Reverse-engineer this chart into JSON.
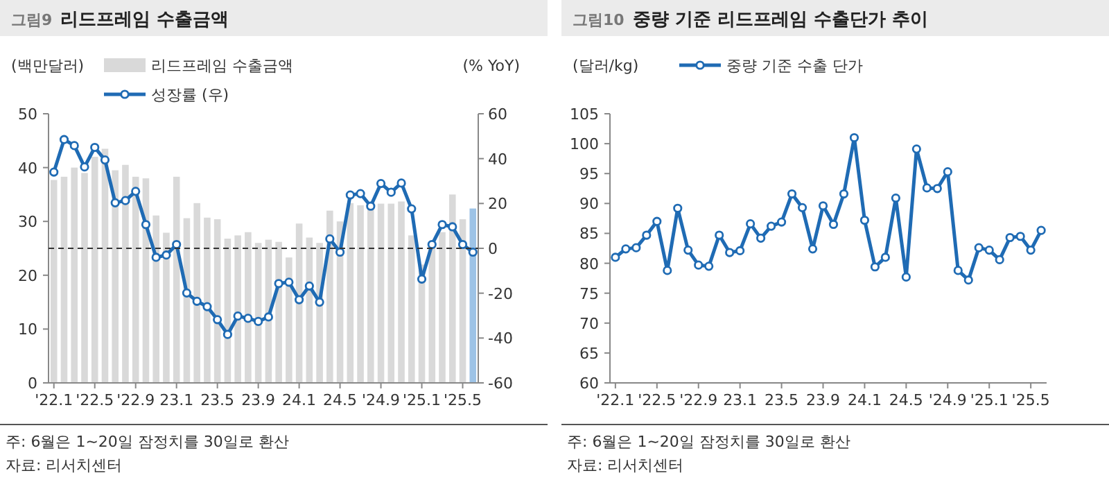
{
  "chart_data": [
    {
      "type": "bar",
      "title": "그림9 리드프레임 수출금액",
      "ylabel": "(백만달러)",
      "y2label": "(% YoY)",
      "categories": [
        "'22.1",
        null,
        null,
        null,
        "'22.5",
        null,
        null,
        null,
        "'22.9",
        null,
        null,
        null,
        "23.1",
        null,
        null,
        null,
        "23.5",
        null,
        null,
        null,
        "23.9",
        null,
        null,
        null,
        "24.1",
        null,
        null,
        null,
        "24.5",
        null,
        null,
        null,
        "'24.9",
        null,
        null,
        null,
        "'25.1",
        null,
        null,
        null,
        "'25.5",
        null
      ],
      "ylim": [
        0,
        50
      ],
      "yticks": [
        0,
        10,
        20,
        30,
        40,
        50
      ],
      "y2lim": [
        -60,
        60
      ],
      "y2ticks": [
        -60,
        -40,
        -20,
        0,
        20,
        40,
        60
      ],
      "series": [
        {
          "name": "리드프레임 수출금액",
          "color": "#d9d9d9",
          "colors": [
            "#d9d9d9",
            "#d9d9d9",
            "#d9d9d9",
            "#d9d9d9",
            "#d9d9d9",
            "#d9d9d9",
            "#d9d9d9",
            "#d9d9d9",
            "#d9d9d9",
            "#d9d9d9",
            "#d9d9d9",
            "#d9d9d9",
            "#d9d9d9",
            "#d9d9d9",
            "#d9d9d9",
            "#d9d9d9",
            "#d9d9d9",
            "#d9d9d9",
            "#d9d9d9",
            "#d9d9d9",
            "#d9d9d9",
            "#d9d9d9",
            "#d9d9d9",
            "#d9d9d9",
            "#d9d9d9",
            "#d9d9d9",
            "#d9d9d9",
            "#d9d9d9",
            "#d9d9d9",
            "#d9d9d9",
            "#d9d9d9",
            "#d9d9d9",
            "#d9d9d9",
            "#d9d9d9",
            "#d9d9d9",
            "#d9d9d9",
            "#d9d9d9",
            "#d9d9d9",
            "#d9d9d9",
            "#d9d9d9",
            "#d9d9d9",
            "#9dc3e6"
          ],
          "values": [
            37.7,
            38.3,
            40,
            39,
            42,
            43.5,
            39.5,
            40.5,
            38.3,
            38,
            31.1,
            27.9,
            38.3,
            30.6,
            33.4,
            30.7,
            30.4,
            26.8,
            27.4,
            28,
            26,
            26.6,
            26.2,
            23.3,
            29.6,
            27,
            26,
            32,
            30,
            33.4,
            33,
            32.6,
            33.3,
            33.3,
            33.7,
            27.4,
            22,
            25.7,
            28,
            35,
            30.4,
            32.4
          ]
        },
        {
          "name": "성장률 (우)",
          "type": "line",
          "axis": "y2",
          "color": "#1f6bb4",
          "values": [
            34,
            48.5,
            45.8,
            36.3,
            45,
            39.4,
            20.3,
            21.3,
            25.4,
            10.6,
            -4,
            -3,
            1.7,
            -19.9,
            -23.6,
            -26,
            -31.8,
            -38.4,
            -30.2,
            -31.2,
            -32.6,
            -30.6,
            -15.7,
            -15.1,
            -22.9,
            -16.8,
            -24,
            4.2,
            -1.7,
            23.8,
            24.4,
            18.8,
            28.9,
            25,
            29.1,
            17.6,
            -13.7,
            1.7,
            10.6,
            9.6,
            1.7,
            -1.7
          ]
        }
      ],
      "ref_lines": [
        {
          "axis": "y2",
          "value": 0,
          "color": "#333333",
          "line_style": "dashed"
        }
      ],
      "legend": "top",
      "marker": "circle",
      "annotations": [
        "주: 6월은 1~20일 잠정치를 30일로 환산",
        "자료: 리서치센터"
      ]
    },
    {
      "type": "line",
      "title": "그림10 중량 기준 리드프레임 수출단가 추이",
      "ylabel": "(달러/kg)",
      "categories": [
        "'22.1",
        null,
        null,
        null,
        "'22.5",
        null,
        null,
        null,
        "'22.9",
        null,
        null,
        null,
        "23.1",
        null,
        null,
        null,
        "23.5",
        null,
        null,
        null,
        "23.9",
        null,
        null,
        null,
        "24.1",
        null,
        null,
        null,
        "24.5",
        null,
        null,
        null,
        "'24.9",
        null,
        null,
        null,
        "'25.1",
        null,
        null,
        null,
        "'25.5",
        null
      ],
      "ylim": [
        60,
        105
      ],
      "yticks": [
        60,
        65,
        70,
        75,
        80,
        85,
        90,
        95,
        100,
        105
      ],
      "series": [
        {
          "name": "중량 기준 수출 단가",
          "color": "#1f6bb4",
          "values": [
            81,
            82.4,
            82.6,
            84.7,
            87,
            78.8,
            89.2,
            82.2,
            79.7,
            79.5,
            84.7,
            81.8,
            82.1,
            86.6,
            84.2,
            86.2,
            86.9,
            91.6,
            89.3,
            82.4,
            89.6,
            86.5,
            91.6,
            101,
            87.2,
            79.4,
            81,
            90.9,
            77.7,
            99.1,
            92.6,
            92.5,
            95.3,
            78.8,
            77.2,
            82.6,
            82.2,
            80.6,
            84.3,
            84.5,
            82.2,
            85.5
          ]
        }
      ],
      "legend": "top",
      "marker": "circle",
      "annotations": [
        "주: 6월은 1~20일 잠정치를 30일로 환산",
        "자료: 리서치센터"
      ]
    }
  ]
}
